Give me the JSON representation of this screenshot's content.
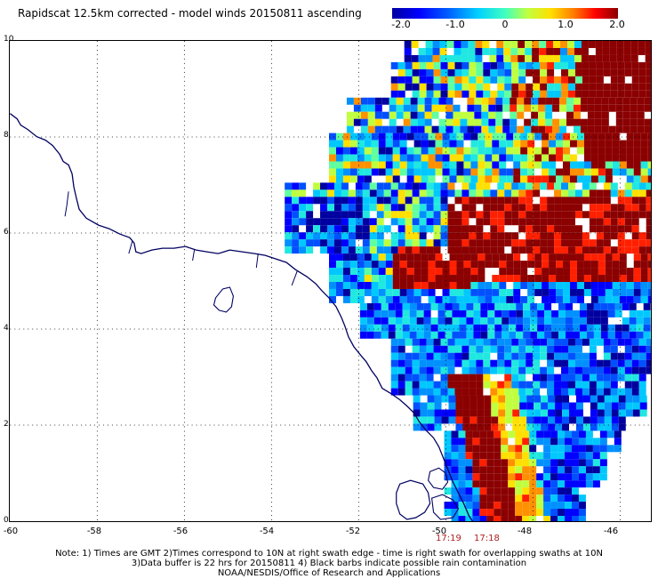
{
  "title": "Rapidscat 12.5km corrected - model winds 20150811 ascending",
  "colorbar": {
    "labels": [
      "-2.0",
      "-1.0",
      "0",
      "1.0",
      "2.0"
    ],
    "min": -2.0,
    "max": 2.0
  },
  "map": {
    "lon_range": [
      -60,
      -45.3
    ],
    "lat_range": [
      0,
      10
    ],
    "x_ticks": [
      "-60",
      "-58",
      "-56",
      "-54",
      "-52",
      "-50",
      "-48",
      "-46"
    ],
    "y_ticks": [
      "0",
      "2",
      "4",
      "6",
      "8",
      "10"
    ],
    "times": [
      "17:19",
      "17:18"
    ]
  },
  "notes": [
    "Note: 1) Times are GMT 2)Times correspond to 10N at right swath edge - time is right swath for overlapping swaths at 10N",
    "3)Data buffer is 22 hrs for 20150811 4) Black barbs indicate possible rain contamination",
    "NOAA/NESDIS/Office of Research and Applications"
  ]
}
